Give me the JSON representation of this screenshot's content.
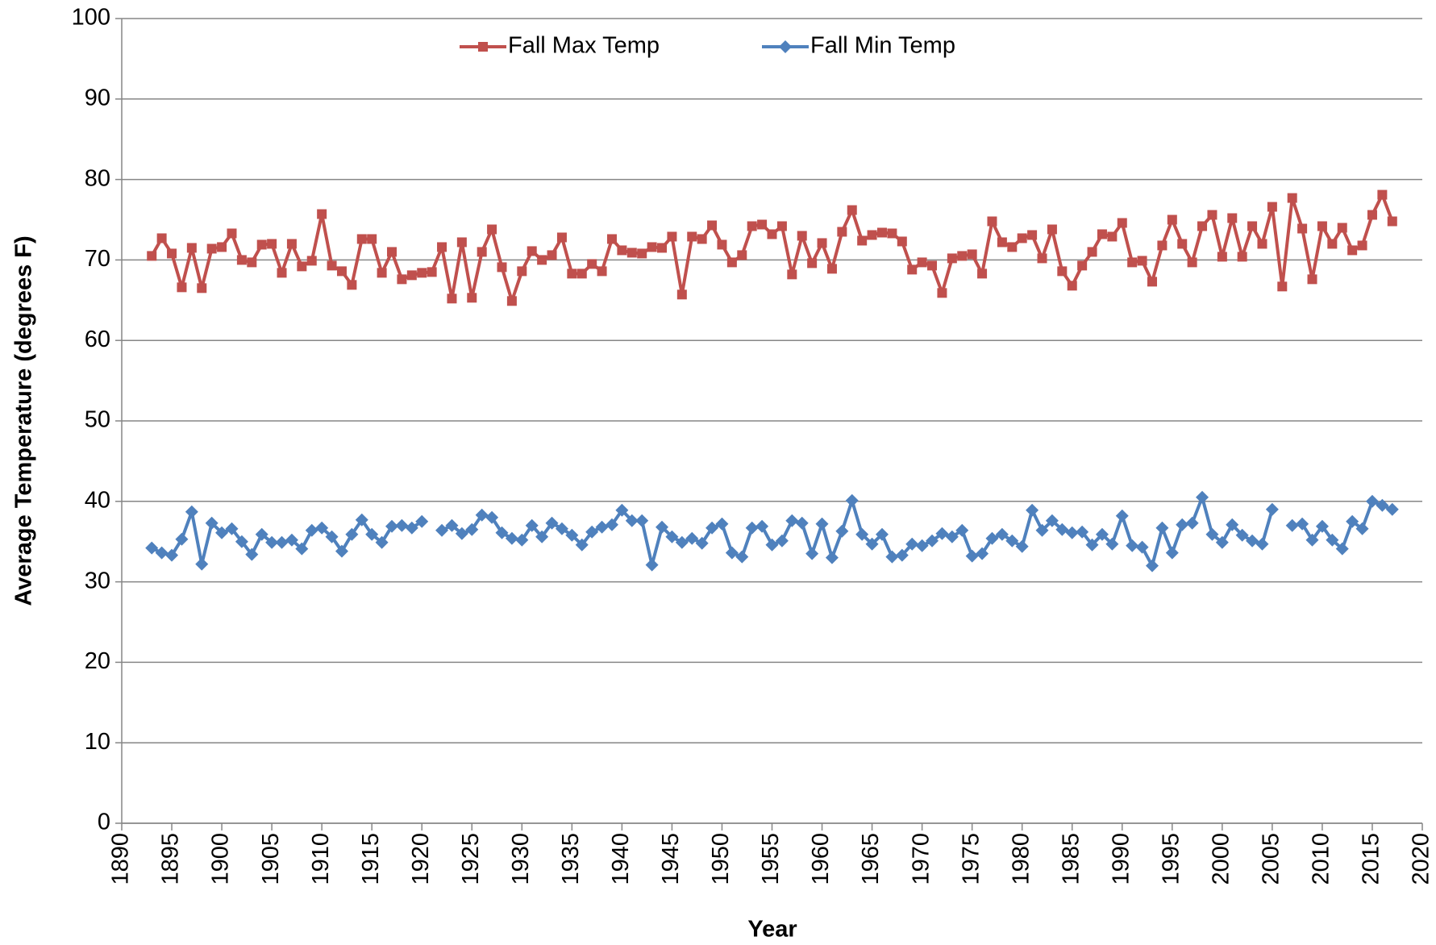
{
  "chart_data": {
    "type": "line",
    "xlabel": "Year",
    "ylabel": "Average Temperature (degrees F)",
    "x": [
      1893,
      1894,
      1895,
      1896,
      1897,
      1898,
      1899,
      1900,
      1901,
      1902,
      1903,
      1904,
      1905,
      1906,
      1907,
      1908,
      1909,
      1910,
      1911,
      1912,
      1913,
      1914,
      1915,
      1916,
      1917,
      1918,
      1919,
      1920,
      1921,
      1922,
      1923,
      1924,
      1925,
      1926,
      1927,
      1928,
      1929,
      1930,
      1931,
      1932,
      1933,
      1934,
      1935,
      1936,
      1937,
      1938,
      1939,
      1940,
      1941,
      1942,
      1943,
      1944,
      1945,
      1946,
      1947,
      1948,
      1949,
      1950,
      1951,
      1952,
      1953,
      1954,
      1955,
      1956,
      1957,
      1958,
      1959,
      1960,
      1961,
      1962,
      1963,
      1964,
      1965,
      1966,
      1967,
      1968,
      1969,
      1970,
      1971,
      1972,
      1973,
      1974,
      1975,
      1976,
      1977,
      1978,
      1979,
      1980,
      1981,
      1982,
      1983,
      1984,
      1985,
      1986,
      1987,
      1988,
      1989,
      1990,
      1991,
      1992,
      1993,
      1994,
      1995,
      1996,
      1997,
      1998,
      1999,
      2000,
      2001,
      2002,
      2003,
      2004,
      2005,
      2006,
      2007,
      2008,
      2009,
      2010,
      2011,
      2012,
      2013,
      2014,
      2015,
      2016,
      2017
    ],
    "series": [
      {
        "name": "Fall Max Temp",
        "color": "#c0504d",
        "marker": "square",
        "values": [
          70.5,
          72.7,
          70.8,
          66.6,
          71.5,
          66.5,
          71.4,
          71.6,
          73.3,
          70.0,
          69.7,
          71.9,
          72.0,
          68.4,
          72.0,
          69.2,
          69.9,
          75.7,
          69.3,
          68.6,
          66.9,
          72.6,
          72.6,
          68.4,
          71.0,
          67.6,
          68.1,
          68.4,
          68.5,
          71.6,
          65.2,
          72.2,
          65.3,
          71.0,
          73.8,
          69.1,
          64.9,
          68.6,
          71.1,
          70.0,
          70.6,
          72.8,
          68.3,
          68.3,
          69.5,
          68.6,
          72.6,
          71.2,
          70.9,
          70.8,
          71.6,
          71.5,
          72.9,
          65.7,
          72.9,
          72.6,
          74.3,
          71.9,
          69.7,
          70.6,
          74.2,
          74.4,
          73.2,
          74.2,
          68.2,
          73.0,
          69.6,
          72.1,
          68.9,
          73.5,
          76.2,
          72.4,
          73.1,
          73.4,
          73.3,
          72.3,
          68.8,
          69.7,
          69.3,
          65.9,
          70.2,
          70.5,
          70.7,
          68.3,
          74.8,
          72.2,
          71.6,
          72.7,
          73.1,
          70.2,
          73.8,
          68.6,
          66.8,
          69.3,
          71.0,
          73.2,
          72.9,
          74.6,
          69.7,
          69.9,
          67.3,
          71.8,
          75.0,
          72.0,
          69.7,
          74.2,
          75.6,
          70.4,
          75.2,
          70.4,
          74.2,
          72.0,
          76.6,
          66.7,
          77.7,
          73.9,
          67.6,
          74.2,
          72.0,
          74.0,
          71.2,
          71.8,
          75.6,
          78.1,
          74.8
        ]
      },
      {
        "name": "Fall Min Temp",
        "color": "#4f81bd",
        "marker": "diamond",
        "values": [
          34.2,
          33.6,
          33.3,
          35.3,
          38.7,
          32.2,
          37.3,
          36.1,
          36.6,
          35.0,
          33.4,
          35.9,
          34.9,
          34.9,
          35.2,
          34.1,
          36.4,
          36.7,
          35.6,
          33.8,
          35.9,
          37.7,
          35.9,
          34.9,
          36.9,
          37.0,
          36.7,
          37.5,
          null,
          36.4,
          37.0,
          36.0,
          36.5,
          38.3,
          38.0,
          36.1,
          35.4,
          35.2,
          37.0,
          35.6,
          37.3,
          36.6,
          35.8,
          34.6,
          36.2,
          36.8,
          37.1,
          38.9,
          37.6,
          37.6,
          32.1,
          36.8,
          35.6,
          34.9,
          35.4,
          34.8,
          36.7,
          37.2,
          33.6,
          33.1,
          36.7,
          36.9,
          34.6,
          35.1,
          37.6,
          37.3,
          33.5,
          37.2,
          33.0,
          36.3,
          40.1,
          35.9,
          34.7,
          35.9,
          33.1,
          33.3,
          34.7,
          34.5,
          35.1,
          36.0,
          35.6,
          36.4,
          33.2,
          33.5,
          35.4,
          35.9,
          35.1,
          34.4,
          38.9,
          36.4,
          37.6,
          36.5,
          36.1,
          36.2,
          34.6,
          35.9,
          34.7,
          38.2,
          34.5,
          34.3,
          32.0,
          36.7,
          33.6,
          37.1,
          37.3,
          40.5,
          35.9,
          34.9,
          37.1,
          35.8,
          35.1,
          34.7,
          39.0,
          null,
          37.0,
          37.2,
          35.2,
          36.9,
          35.2,
          34.1,
          37.5,
          36.6,
          40.0,
          39.5,
          39.0
        ]
      }
    ],
    "xlim": [
      1890,
      2020
    ],
    "xticks": [
      1890,
      1895,
      1900,
      1905,
      1910,
      1915,
      1920,
      1925,
      1930,
      1935,
      1940,
      1945,
      1950,
      1955,
      1960,
      1965,
      1970,
      1975,
      1980,
      1985,
      1990,
      1995,
      2000,
      2005,
      2010,
      2015,
      2020
    ],
    "ylim": [
      0,
      100
    ],
    "yticks": [
      0,
      10,
      20,
      30,
      40,
      50,
      60,
      70,
      80,
      90,
      100
    ],
    "grid": true,
    "legend": "top"
  }
}
